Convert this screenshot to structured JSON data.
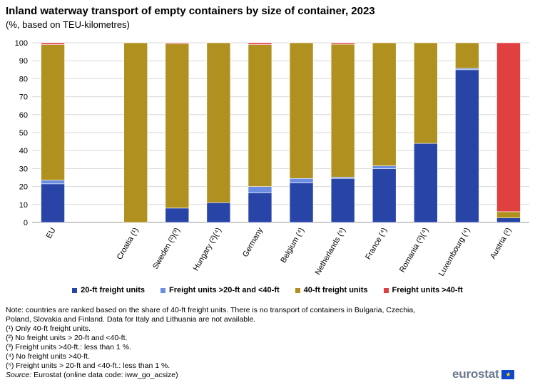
{
  "header": {
    "title": "Inland waterway transport of empty containers by size of container, 2023",
    "subtitle": "(%, based on TEU-kilometres)"
  },
  "chart_data": {
    "type": "bar",
    "stacked": true,
    "categories": [
      "EU",
      "",
      "Croatia (¹)",
      "Sweden (²)(³)",
      "Hungary (²)(⁴)",
      "Germany",
      "Belgium (⁴)",
      "Netherlands (⁵)",
      "France (⁴)",
      "Romania (²)(⁴)",
      "Luxembourg (⁴)",
      "Austria (²)"
    ],
    "series": [
      {
        "name": "20-ft freight units",
        "color": "#2944a7",
        "values": [
          21.5,
          0,
          0,
          8,
          11,
          16.5,
          22,
          24.5,
          30,
          44,
          85,
          2.5
        ]
      },
      {
        "name": "Freight units >20-ft and <40-ft",
        "color": "#6b8de3",
        "values": [
          2,
          0,
          0,
          0,
          0,
          3.5,
          2.5,
          0.7,
          1.5,
          0,
          0.8,
          0
        ]
      },
      {
        "name": "40-ft freight units",
        "color": "#b09120",
        "values": [
          75.5,
          0,
          100,
          91.5,
          89,
          79,
          75.5,
          74,
          68.5,
          56,
          14.2,
          3.5
        ]
      },
      {
        "name": "Freight units >40-ft",
        "color": "#e04040",
        "values": [
          1,
          0,
          0,
          0.5,
          0,
          1,
          0,
          0.8,
          0,
          0,
          0,
          94
        ]
      }
    ],
    "yticks": [
      0,
      10,
      20,
      30,
      40,
      50,
      60,
      70,
      80,
      90,
      100
    ],
    "ylim": [
      0,
      100
    ],
    "xlabel": "",
    "ylabel": "",
    "grid": true,
    "legend": "bottom"
  },
  "notes": {
    "main": "Note: countries are ranked based on the share of 40-ft freight units. There is no transport of containers in Bulgaria, Czechia, Poland, Slovakia and Finland. Data for Italy and Lithuania are not available.",
    "footnotes": [
      "(¹) Only 40-ft freight units.",
      "(²) No freight units > 20-ft and <40-ft.",
      "(³) Freight units >40-ft.: less than 1 %.",
      "(⁴) No freight units >40-ft.",
      "(⁵) Freight units > 20-ft and <40-ft.: less than 1 %."
    ],
    "source_label": "Source:",
    "source_text": " Eurostat (online data code: iww_go_acsize)"
  },
  "branding": {
    "logo_text": "eurostat",
    "flag_symbol": "★"
  }
}
